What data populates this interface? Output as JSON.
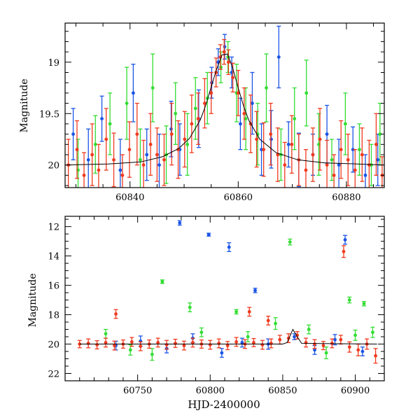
{
  "chart_data": [
    {
      "type": "scatter",
      "xlabel": "",
      "ylabel": "Magnitude",
      "xlim": [
        60828,
        60887
      ],
      "ylim": [
        20.22,
        18.62
      ],
      "y_inverted": true,
      "xticks": [
        60840,
        60860,
        60880
      ],
      "yticks": [
        19,
        19.5,
        20
      ],
      "ytick_labels": [
        "19",
        "19.5",
        "20"
      ],
      "grid": false,
      "colors": {
        "blue": "#1a55e6",
        "green": "#33dd33",
        "red": "#f03a1e",
        "model": "#000000"
      },
      "model_curve": {
        "x": [
          60828,
          60836,
          60842,
          60846,
          60849,
          60851,
          60853,
          60854,
          60855,
          60856,
          60857,
          60858,
          60859,
          60860,
          60861,
          60862,
          60864,
          60867,
          60871,
          60876,
          60882,
          60887
        ],
        "y": [
          20.0,
          19.99,
          19.97,
          19.92,
          19.84,
          19.74,
          19.56,
          19.42,
          19.24,
          19.07,
          18.93,
          18.92,
          19.06,
          19.25,
          19.43,
          19.57,
          19.75,
          19.88,
          19.95,
          19.98,
          19.99,
          20.0
        ]
      },
      "series_blue": {
        "x": [
          60829.5,
          60832.3,
          60834.8,
          60838.2,
          60840.6,
          60843.1,
          60845.4,
          60847.6,
          60849.2,
          60852.7,
          60855.1,
          60856.3,
          60857.5,
          60858.8,
          60860.4,
          60862.6,
          60864.3,
          60866.1,
          60867.5,
          60869.3,
          60871.2,
          60873.8,
          60876.4,
          60878.6,
          60881.2,
          60883.5,
          60885.8
        ],
        "y": [
          19.7,
          19.95,
          19.55,
          20.05,
          19.3,
          19.9,
          20.0,
          19.65,
          19.85,
          19.55,
          19.2,
          19.0,
          18.85,
          19.1,
          19.6,
          19.4,
          19.85,
          19.75,
          18.95,
          19.8,
          19.95,
          19.9,
          19.7,
          20.0,
          19.85,
          20.1,
          19.95
        ],
        "err": [
          0.25,
          0.3,
          0.22,
          0.3,
          0.28,
          0.25,
          0.3,
          0.27,
          0.25,
          0.28,
          0.15,
          0.13,
          0.12,
          0.15,
          0.25,
          0.3,
          0.25,
          0.28,
          0.3,
          0.22,
          0.26,
          0.2,
          0.28,
          0.25,
          0.22,
          0.2,
          0.25
        ]
      },
      "series_green": {
        "x": [
          60830.4,
          60833.6,
          60836.3,
          60839.4,
          60841.9,
          60844.2,
          60846.7,
          60848.4,
          60850.6,
          60852.1,
          60854.3,
          60856.8,
          60858.1,
          60859.7,
          60861.4,
          60863.6,
          60865.2,
          60867.9,
          60870.4,
          60872.6,
          60874.9,
          60877.3,
          60879.8,
          60882.4,
          60884.6,
          60886.2
        ],
        "y": [
          20.05,
          19.8,
          19.6,
          19.4,
          19.95,
          19.25,
          19.9,
          19.5,
          19.8,
          19.45,
          19.35,
          19.05,
          18.95,
          19.3,
          19.55,
          19.7,
          19.25,
          19.9,
          19.55,
          19.3,
          19.8,
          19.95,
          19.6,
          19.85,
          20.0,
          19.7
        ],
        "err": [
          0.3,
          0.28,
          0.3,
          0.35,
          0.3,
          0.33,
          0.28,
          0.3,
          0.3,
          0.3,
          0.25,
          0.15,
          0.15,
          0.28,
          0.3,
          0.3,
          0.33,
          0.25,
          0.3,
          0.32,
          0.3,
          0.2,
          0.3,
          0.25,
          0.2,
          0.3
        ]
      },
      "series_red": {
        "x": [
          60828.6,
          60830.2,
          60831.5,
          60833.0,
          60834.2,
          60835.6,
          60837.0,
          60838.6,
          60839.9,
          60841.3,
          60842.5,
          60843.8,
          60845.0,
          60846.3,
          60847.7,
          60848.9,
          60850.1,
          60851.4,
          60852.6,
          60853.8,
          60855.0,
          60855.9,
          60856.7,
          60857.4,
          60858.2,
          60859.0,
          60860.0,
          60861.1,
          60862.3,
          60863.4,
          60864.7,
          60866.0,
          60867.3,
          60868.6,
          60869.9,
          60871.2,
          60872.5,
          60873.8,
          60875.1,
          60876.4,
          60877.7,
          60879.0,
          60880.3,
          60881.6,
          60882.9,
          60884.2,
          60885.5,
          60886.6
        ],
        "y": [
          20.0,
          19.85,
          20.1,
          19.9,
          20.05,
          19.75,
          19.95,
          20.1,
          19.85,
          19.7,
          20.0,
          19.8,
          19.9,
          19.95,
          19.7,
          19.85,
          19.75,
          19.6,
          19.55,
          19.4,
          19.3,
          19.1,
          18.95,
          18.9,
          19.0,
          19.15,
          19.3,
          19.5,
          19.6,
          19.75,
          19.85,
          19.7,
          19.9,
          20.0,
          19.8,
          19.95,
          20.05,
          19.9,
          19.75,
          20.0,
          20.1,
          19.85,
          19.95,
          20.05,
          19.9,
          20.0,
          19.8,
          20.1
        ],
        "err": [
          0.25,
          0.28,
          0.22,
          0.3,
          0.25,
          0.3,
          0.26,
          0.2,
          0.27,
          0.3,
          0.24,
          0.3,
          0.26,
          0.25,
          0.3,
          0.28,
          0.27,
          0.28,
          0.25,
          0.24,
          0.2,
          0.14,
          0.12,
          0.12,
          0.12,
          0.14,
          0.22,
          0.25,
          0.28,
          0.27,
          0.26,
          0.3,
          0.26,
          0.22,
          0.28,
          0.25,
          0.2,
          0.26,
          0.3,
          0.24,
          0.2,
          0.28,
          0.25,
          0.2,
          0.26,
          0.24,
          0.3,
          0.18
        ]
      }
    },
    {
      "type": "scatter",
      "xlabel": "HJD-2400000",
      "ylabel": "Magnitude",
      "xlim": [
        60700,
        60920
      ],
      "ylim": [
        22.5,
        11.3
      ],
      "y_inverted": true,
      "xticks": [
        60750,
        60800,
        60850,
        60900
      ],
      "yticks": [
        12,
        14,
        16,
        18,
        20,
        22
      ],
      "ytick_labels": [
        "12",
        "14",
        "16",
        "18",
        "20",
        "22"
      ],
      "grid": false,
      "colors": {
        "blue": "#1a55e6",
        "green": "#33dd33",
        "red": "#f03a1e",
        "model": "#000000"
      },
      "model_curve": {
        "x": [
          60710,
          60850,
          60853,
          60857,
          60860,
          60863,
          60915
        ],
        "y": [
          20.0,
          20.0,
          19.9,
          19.0,
          19.5,
          19.95,
          20.0
        ]
      },
      "series_blue": {
        "x": [
          60779,
          60799,
          60813,
          60831,
          60735,
          60752,
          60770,
          60788,
          60808,
          60822,
          60840,
          60858,
          60872,
          60886,
          60893,
          60905
        ],
        "y": [
          11.75,
          12.55,
          13.4,
          16.35,
          20.1,
          19.8,
          20.3,
          19.6,
          20.6,
          19.9,
          20.0,
          19.5,
          20.4,
          19.7,
          12.9,
          20.5
        ],
        "err": [
          0.15,
          0.1,
          0.3,
          0.15,
          0.3,
          0.35,
          0.3,
          0.3,
          0.3,
          0.3,
          0.35,
          0.2,
          0.3,
          0.35,
          0.3,
          0.3
        ]
      },
      "series_green": {
        "x": [
          60767,
          60786,
          60818,
          60855,
          60896,
          60906,
          60728,
          60745,
          60760,
          60794,
          60826,
          60845,
          60868,
          60880,
          60900,
          60912
        ],
        "y": [
          15.75,
          17.5,
          17.8,
          13.05,
          17.0,
          17.25,
          19.3,
          20.4,
          20.7,
          19.2,
          19.5,
          18.6,
          19.0,
          20.6,
          19.4,
          19.2
        ],
        "err": [
          0.12,
          0.3,
          0.15,
          0.2,
          0.2,
          0.15,
          0.3,
          0.35,
          0.4,
          0.3,
          0.35,
          0.4,
          0.3,
          0.4,
          0.35,
          0.35
        ]
      },
      "series_red": {
        "x": [
          60735,
          60892,
          60827,
          60840,
          60710,
          60716,
          60722,
          60728,
          60734,
          60740,
          60746,
          60752,
          60758,
          60764,
          60770,
          60776,
          60782,
          60788,
          60794,
          60800,
          60806,
          60812,
          60818,
          60824,
          60830,
          60836,
          60842,
          60848,
          60854,
          60860,
          60866,
          60872,
          60878,
          60884,
          60890,
          60896,
          60902,
          60908,
          60914
        ],
        "y": [
          17.95,
          13.7,
          17.8,
          18.4,
          20.0,
          19.95,
          20.05,
          19.9,
          20.1,
          20.0,
          19.85,
          20.15,
          20.0,
          19.9,
          20.05,
          19.95,
          20.1,
          19.9,
          20.0,
          20.05,
          19.95,
          20.1,
          19.85,
          20.0,
          19.9,
          20.05,
          19.95,
          19.7,
          19.6,
          19.4,
          19.9,
          20.0,
          20.1,
          19.95,
          19.7,
          20.2,
          20.4,
          20.0,
          20.8
        ],
        "err": [
          0.3,
          0.4,
          0.3,
          0.3,
          0.25,
          0.3,
          0.28,
          0.3,
          0.3,
          0.28,
          0.3,
          0.3,
          0.28,
          0.3,
          0.3,
          0.28,
          0.3,
          0.3,
          0.28,
          0.3,
          0.3,
          0.28,
          0.3,
          0.3,
          0.28,
          0.3,
          0.3,
          0.3,
          0.3,
          0.25,
          0.3,
          0.3,
          0.28,
          0.3,
          0.3,
          0.35,
          0.4,
          0.35,
          0.5
        ]
      }
    }
  ]
}
